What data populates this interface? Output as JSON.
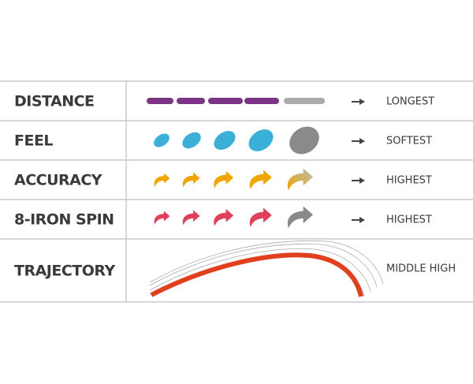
{
  "rows": [
    {
      "label": "DISTANCE",
      "value": "LONGEST"
    },
    {
      "label": "FEEL",
      "value": "SOFTEST"
    },
    {
      "label": "ACCURACY",
      "value": "HIGHEST"
    },
    {
      "label": "8-IRON SPIN",
      "value": "HIGHEST"
    },
    {
      "label": "TRAJECTORY",
      "value": "MIDDLE HIGH"
    }
  ]
}
